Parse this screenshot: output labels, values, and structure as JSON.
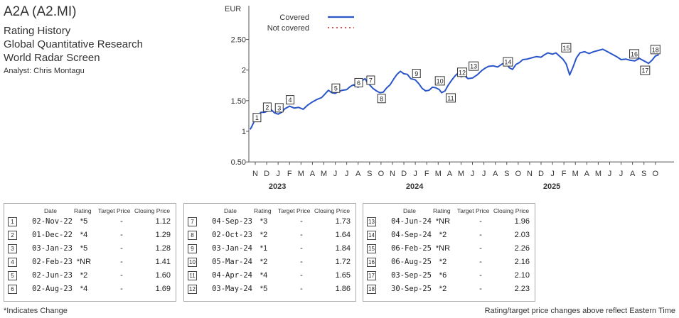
{
  "header": {
    "title": "A2A (A2.MI)",
    "lines": [
      "Rating History",
      "Global Quantitative Research",
      "World Radar Screen"
    ],
    "analyst": "Analyst: Chris Montagu"
  },
  "chart_data": {
    "type": "line",
    "ylabel": "EUR",
    "ylim": [
      0.5,
      2.75
    ],
    "yticks": [
      {
        "v": 0.5,
        "l": "0.50"
      },
      {
        "v": 1,
        "l": "1"
      },
      {
        "v": 1.5,
        "l": "1.50"
      },
      {
        "v": 2,
        "l": "2"
      },
      {
        "v": 2.5,
        "l": "2.50"
      }
    ],
    "month_labels": [
      "N",
      "D",
      "J",
      "F",
      "M",
      "A",
      "M",
      "J",
      "J",
      "A",
      "S",
      "O",
      "N",
      "D",
      "J",
      "F",
      "M",
      "A",
      "M",
      "J",
      "J",
      "A",
      "S",
      "O",
      "N",
      "D",
      "J",
      "F",
      "M",
      "A",
      "M",
      "J",
      "J",
      "A",
      "S",
      "O"
    ],
    "year_labels": [
      {
        "label": "2023",
        "month_index": 2
      },
      {
        "label": "2024",
        "month_index": 14
      },
      {
        "label": "2025",
        "month_index": 26
      }
    ],
    "legend": [
      {
        "name": "Covered",
        "color": "#2a55c9",
        "style": "solid"
      },
      {
        "name": "Not covered",
        "color": "#e05050",
        "style": "dotted"
      }
    ],
    "series": [
      {
        "name": "Covered",
        "color": "#2a55c9",
        "points": [
          [
            -0.45,
            1.03
          ],
          [
            -0.3,
            1.08
          ],
          [
            -0.1,
            1.16
          ],
          [
            0.1,
            1.19
          ],
          [
            0.3,
            1.27
          ],
          [
            0.5,
            1.31
          ],
          [
            0.8,
            1.31
          ],
          [
            1.1,
            1.33
          ],
          [
            1.4,
            1.35
          ],
          [
            1.7,
            1.3
          ],
          [
            2.0,
            1.28
          ],
          [
            2.3,
            1.31
          ],
          [
            2.6,
            1.37
          ],
          [
            3.0,
            1.41
          ],
          [
            3.4,
            1.38
          ],
          [
            3.8,
            1.39
          ],
          [
            4.2,
            1.36
          ],
          [
            4.6,
            1.43
          ],
          [
            5.0,
            1.48
          ],
          [
            5.4,
            1.52
          ],
          [
            5.8,
            1.55
          ],
          [
            6.1,
            1.61
          ],
          [
            6.4,
            1.67
          ],
          [
            6.7,
            1.63
          ],
          [
            7.0,
            1.62
          ],
          [
            7.3,
            1.65
          ],
          [
            7.6,
            1.67
          ],
          [
            8.0,
            1.68
          ],
          [
            8.3,
            1.73
          ],
          [
            8.6,
            1.76
          ],
          [
            9.0,
            1.72
          ],
          [
            9.3,
            1.82
          ],
          [
            9.6,
            1.86
          ],
          [
            9.8,
            1.8
          ],
          [
            10.0,
            1.76
          ],
          [
            10.3,
            1.7
          ],
          [
            10.6,
            1.66
          ],
          [
            10.9,
            1.63
          ],
          [
            11.2,
            1.64
          ],
          [
            11.5,
            1.71
          ],
          [
            11.8,
            1.76
          ],
          [
            12.1,
            1.85
          ],
          [
            12.4,
            1.93
          ],
          [
            12.7,
            1.98
          ],
          [
            13.0,
            1.94
          ],
          [
            13.3,
            1.93
          ],
          [
            13.6,
            1.86
          ],
          [
            14.0,
            1.84
          ],
          [
            14.3,
            1.78
          ],
          [
            14.6,
            1.7
          ],
          [
            14.9,
            1.66
          ],
          [
            15.2,
            1.67
          ],
          [
            15.5,
            1.72
          ],
          [
            15.8,
            1.71
          ],
          [
            16.1,
            1.68
          ],
          [
            16.3,
            1.63
          ],
          [
            16.6,
            1.66
          ],
          [
            16.9,
            1.76
          ],
          [
            17.2,
            1.84
          ],
          [
            17.5,
            1.91
          ],
          [
            17.8,
            1.96
          ],
          [
            18.0,
            1.89
          ],
          [
            18.3,
            1.91
          ],
          [
            18.6,
            1.86
          ],
          [
            19.0,
            1.87
          ],
          [
            19.4,
            1.92
          ],
          [
            19.8,
            1.99
          ],
          [
            20.1,
            2.03
          ],
          [
            20.4,
            2.06
          ],
          [
            20.8,
            2.07
          ],
          [
            21.2,
            2.05
          ],
          [
            21.6,
            2.1
          ],
          [
            22.0,
            2.12
          ],
          [
            22.2,
            2.04
          ],
          [
            22.5,
            2.01
          ],
          [
            22.8,
            2.09
          ],
          [
            23.1,
            2.12
          ],
          [
            23.4,
            2.17
          ],
          [
            23.8,
            2.18
          ],
          [
            24.2,
            2.2
          ],
          [
            24.6,
            2.22
          ],
          [
            25.0,
            2.21
          ],
          [
            25.3,
            2.25
          ],
          [
            25.6,
            2.28
          ],
          [
            26.0,
            2.26
          ],
          [
            26.3,
            2.28
          ],
          [
            26.6,
            2.23
          ],
          [
            26.9,
            2.18
          ],
          [
            27.2,
            2.1
          ],
          [
            27.5,
            1.92
          ],
          [
            27.8,
            2.05
          ],
          [
            28.1,
            2.2
          ],
          [
            28.4,
            2.28
          ],
          [
            28.8,
            2.3
          ],
          [
            29.2,
            2.27
          ],
          [
            29.6,
            2.3
          ],
          [
            30.0,
            2.32
          ],
          [
            30.4,
            2.34
          ],
          [
            30.8,
            2.3
          ],
          [
            31.2,
            2.26
          ],
          [
            31.6,
            2.22
          ],
          [
            32.0,
            2.17
          ],
          [
            32.4,
            2.18
          ],
          [
            32.8,
            2.16
          ],
          [
            33.2,
            2.15
          ],
          [
            33.6,
            2.19
          ],
          [
            34.0,
            2.15
          ],
          [
            34.4,
            2.11
          ],
          [
            34.7,
            2.16
          ],
          [
            35.0,
            2.23
          ],
          [
            35.3,
            2.25
          ]
        ]
      }
    ],
    "markers": [
      {
        "n": "1",
        "x": 0.15,
        "y": 1.12,
        "pos": "above"
      },
      {
        "n": "2",
        "x": 1.05,
        "y": 1.29,
        "pos": "above"
      },
      {
        "n": "3",
        "x": 2.1,
        "y": 1.28,
        "pos": "above"
      },
      {
        "n": "4",
        "x": 3.05,
        "y": 1.41,
        "pos": "above"
      },
      {
        "n": "5",
        "x": 7.05,
        "y": 1.6,
        "pos": "above"
      },
      {
        "n": "6",
        "x": 9.05,
        "y": 1.69,
        "pos": "above"
      },
      {
        "n": "7",
        "x": 10.1,
        "y": 1.73,
        "pos": "above"
      },
      {
        "n": "8",
        "x": 11.05,
        "y": 1.64,
        "pos": "below"
      },
      {
        "n": "9",
        "x": 14.1,
        "y": 1.84,
        "pos": "above"
      },
      {
        "n": "10",
        "x": 16.15,
        "y": 1.72,
        "pos": "above"
      },
      {
        "n": "11",
        "x": 17.1,
        "y": 1.65,
        "pos": "below"
      },
      {
        "n": "12",
        "x": 18.1,
        "y": 1.86,
        "pos": "above"
      },
      {
        "n": "13",
        "x": 19.1,
        "y": 1.96,
        "pos": "above"
      },
      {
        "n": "14",
        "x": 22.1,
        "y": 2.03,
        "pos": "above"
      },
      {
        "n": "15",
        "x": 27.2,
        "y": 2.26,
        "pos": "above"
      },
      {
        "n": "16",
        "x": 33.15,
        "y": 2.16,
        "pos": "above"
      },
      {
        "n": "17",
        "x": 34.1,
        "y": 2.1,
        "pos": "below"
      },
      {
        "n": "18",
        "x": 35.0,
        "y": 2.23,
        "pos": "above"
      }
    ]
  },
  "table": {
    "headers": {
      "date": "Date",
      "rating": "Rating",
      "target": "Target Price",
      "closing": "Closing Price"
    },
    "groups": [
      [
        {
          "n": "1",
          "date": "02-Nov-22",
          "rating": "*5",
          "target": "-",
          "closing": "1.12"
        },
        {
          "n": "2",
          "date": "01-Dec-22",
          "rating": "*4",
          "target": "-",
          "closing": "1.29"
        },
        {
          "n": "3",
          "date": "03-Jan-23",
          "rating": "*5",
          "target": "-",
          "closing": "1.28"
        },
        {
          "n": "4",
          "date": "02-Feb-23",
          "rating": "*NR",
          "target": "-",
          "closing": "1.41"
        },
        {
          "n": "5",
          "date": "02-Jun-23",
          "rating": "*2",
          "target": "-",
          "closing": "1.60"
        },
        {
          "n": "6",
          "date": "02-Aug-23",
          "rating": "*4",
          "target": "-",
          "closing": "1.69"
        }
      ],
      [
        {
          "n": "7",
          "date": "04-Sep-23",
          "rating": "*3",
          "target": "-",
          "closing": "1.73"
        },
        {
          "n": "8",
          "date": "02-Oct-23",
          "rating": "*2",
          "target": "-",
          "closing": "1.64"
        },
        {
          "n": "9",
          "date": "03-Jan-24",
          "rating": "*1",
          "target": "-",
          "closing": "1.84"
        },
        {
          "n": "10",
          "date": "05-Mar-24",
          "rating": "*2",
          "target": "-",
          "closing": "1.72"
        },
        {
          "n": "11",
          "date": "04-Apr-24",
          "rating": "*4",
          "target": "-",
          "closing": "1.65"
        },
        {
          "n": "12",
          "date": "03-May-24",
          "rating": "*5",
          "target": "-",
          "closing": "1.86"
        }
      ],
      [
        {
          "n": "13",
          "date": "04-Jun-24",
          "rating": "*NR",
          "target": "-",
          "closing": "1.96"
        },
        {
          "n": "14",
          "date": "04-Sep-24",
          "rating": "*2",
          "target": "-",
          "closing": "2.03"
        },
        {
          "n": "15",
          "date": "06-Feb-25",
          "rating": "*NR",
          "target": "-",
          "closing": "2.26"
        },
        {
          "n": "16",
          "date": "06-Aug-25",
          "rating": "*2",
          "target": "-",
          "closing": "2.16"
        },
        {
          "n": "17",
          "date": "03-Sep-25",
          "rating": "*6",
          "target": "-",
          "closing": "2.10"
        },
        {
          "n": "18",
          "date": "30-Sep-25",
          "rating": "*2",
          "target": "-",
          "closing": "2.23"
        }
      ]
    ]
  },
  "footer": {
    "left": "*Indicates Change",
    "right": "Rating/target price changes above reflect Eastern Time"
  }
}
